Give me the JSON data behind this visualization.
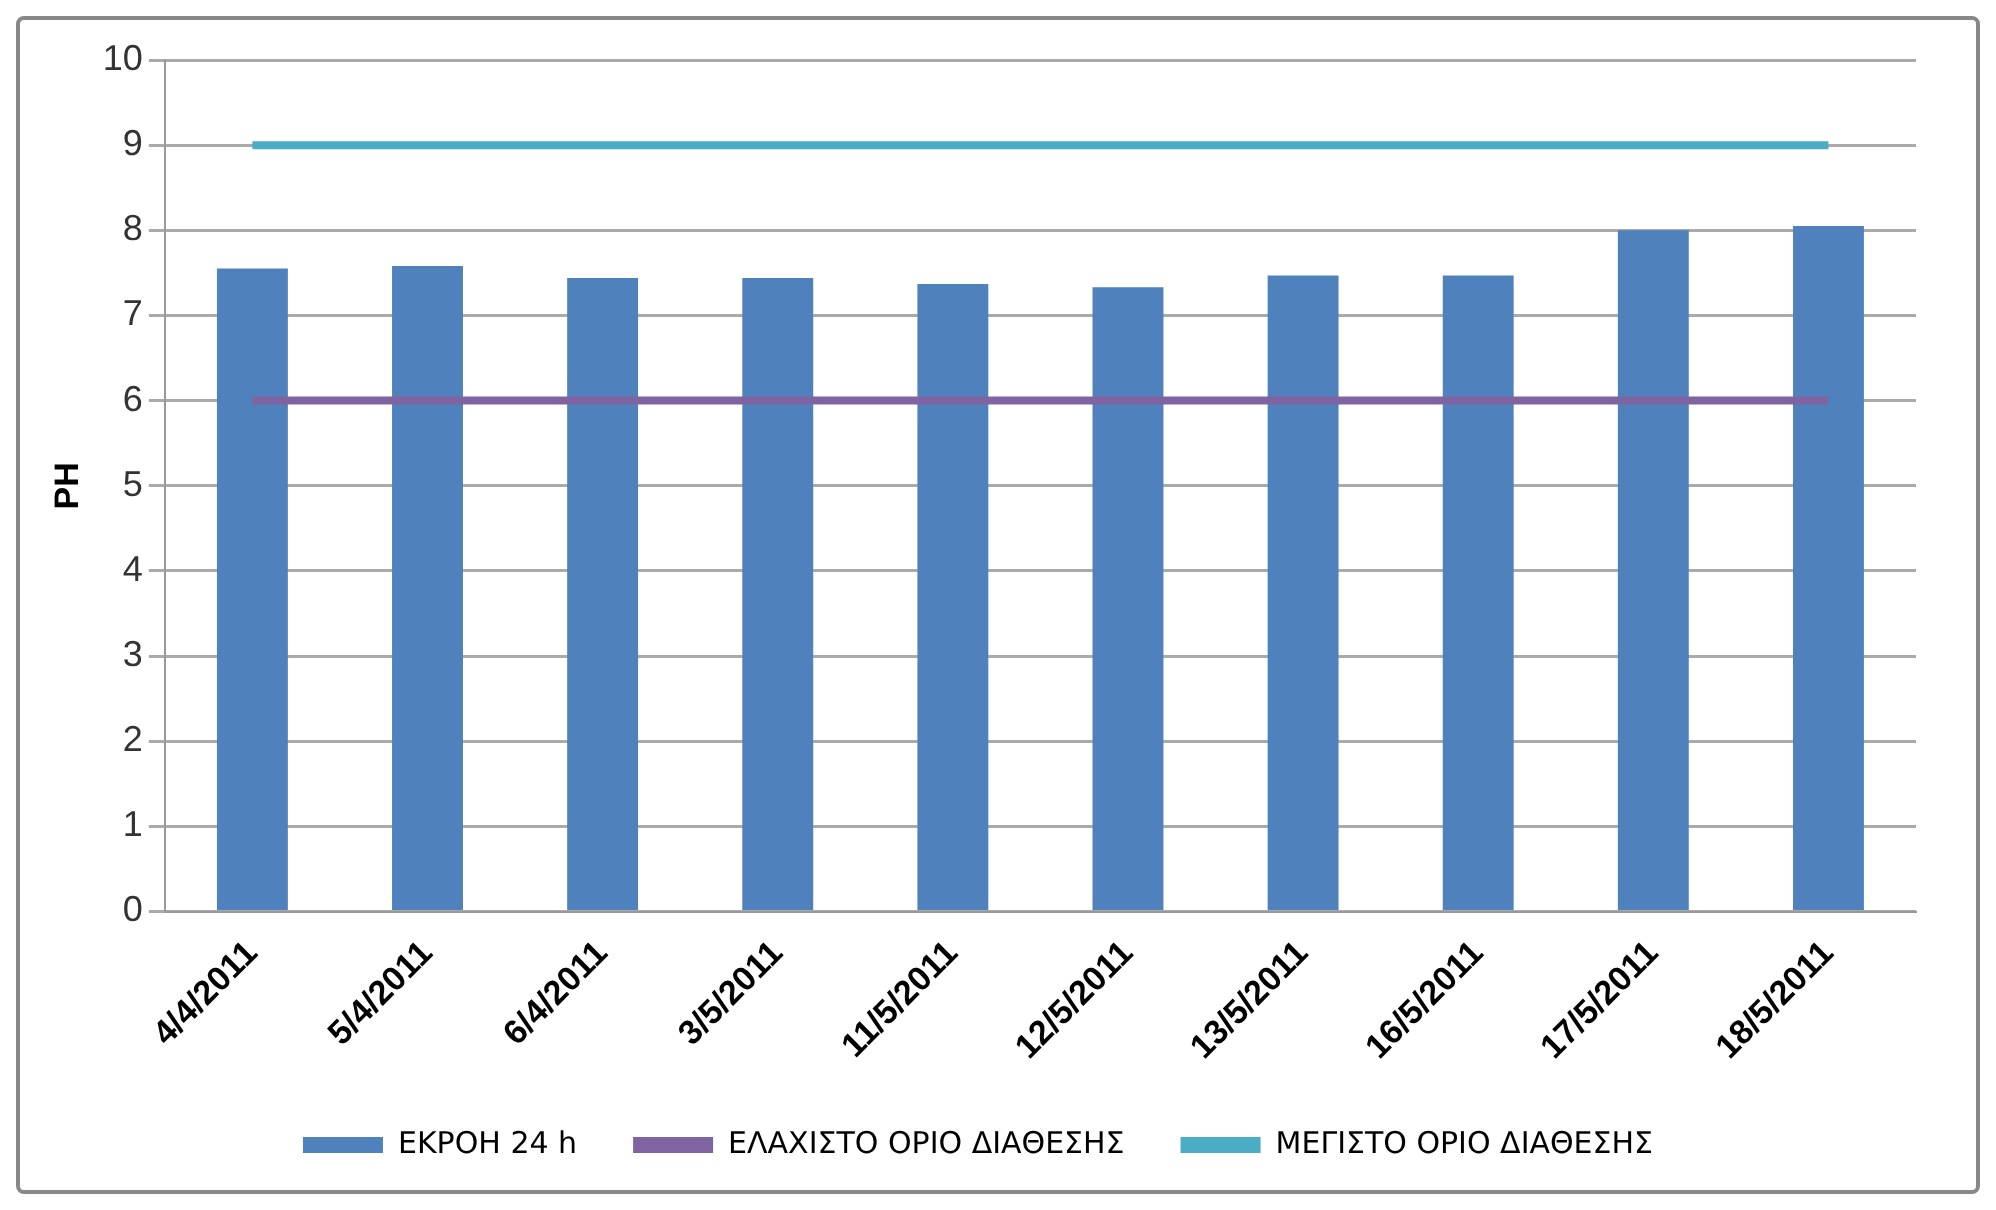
{
  "chart_data": {
    "type": "bar",
    "ylabel": "PH",
    "categories": [
      "4/4/2011",
      "5/4/2011",
      "6/4/2011",
      "3/5/2011",
      "11/5/2011",
      "12/5/2011",
      "13/5/2011",
      "16/5/2011",
      "17/5/2011",
      "18/5/2011"
    ],
    "series": [
      {
        "name": "ΕΚΡΟΗ 24 h",
        "color": "#4f81bd",
        "values": [
          7.55,
          7.58,
          7.44,
          7.44,
          7.37,
          7.33,
          7.47,
          7.47,
          8.0,
          8.05
        ]
      },
      {
        "name": "ΕΛΑΧΙΣΤΟ ΟΡΙΟ ΔΙΑΘΕΣΗΣ",
        "type": "line",
        "color": "#8064a2",
        "values": [
          6,
          6,
          6,
          6,
          6,
          6,
          6,
          6,
          6,
          6
        ]
      },
      {
        "name": "ΜΕΓΙΣΤΟ ΟΡΙΟ ΔΙΑΘΕΣΗΣ",
        "type": "line",
        "color": "#4bacc6",
        "values": [
          9,
          9,
          9,
          9,
          9,
          9,
          9,
          9,
          9,
          9
        ]
      }
    ],
    "ylim": [
      0,
      10
    ],
    "yticks": [
      0,
      1,
      2,
      3,
      4,
      5,
      6,
      7,
      8,
      9,
      10
    ],
    "grid": "y",
    "legend": "bottom",
    "marker": "none"
  }
}
